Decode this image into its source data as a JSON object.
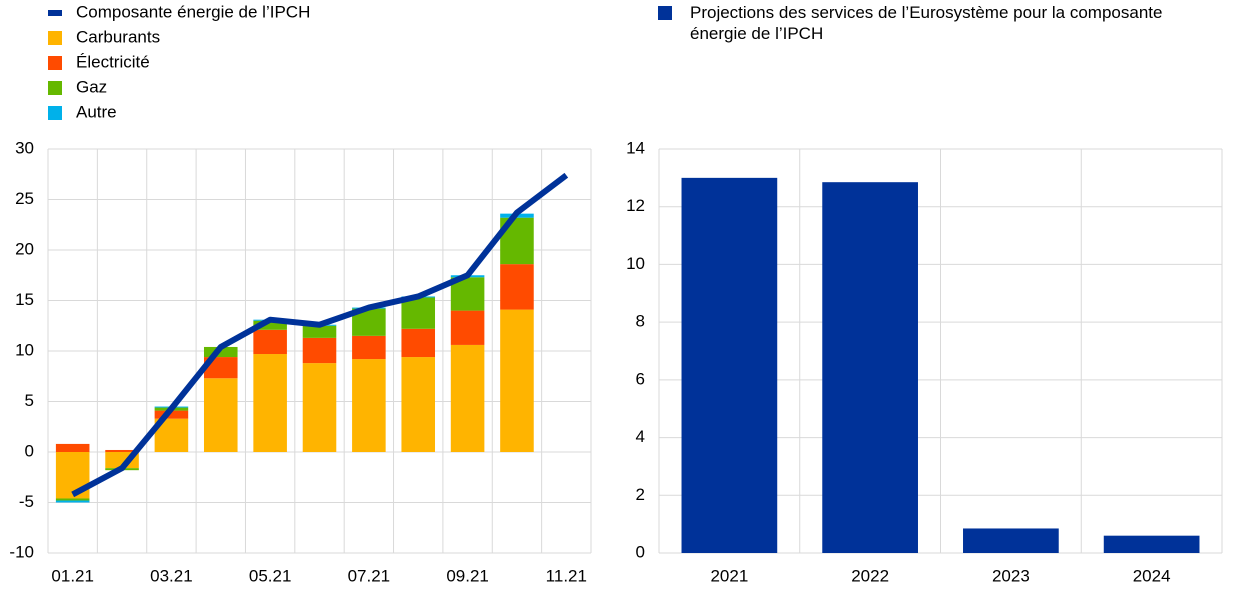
{
  "chart_data": [
    {
      "type": "bar",
      "stacked": true,
      "categories": [
        "01.21",
        null,
        "03.21",
        null,
        "05.21",
        null,
        "07.21",
        null,
        "09.21",
        null,
        "11.21"
      ],
      "series": [
        {
          "name": "Composante énergie de l’IPCH",
          "type": "line",
          "color": "#003299",
          "values": [
            -4.2,
            -1.6,
            4.3,
            10.4,
            13.1,
            12.6,
            14.3,
            15.4,
            17.5,
            23.7,
            27.4
          ]
        },
        {
          "name": "Carburants",
          "color": "#ffb400",
          "values": [
            -4.6,
            -1.6,
            3.3,
            7.3,
            9.7,
            8.8,
            9.2,
            9.4,
            10.6,
            14.1,
            null
          ]
        },
        {
          "name": "Électricité",
          "color": "#ff4b00",
          "values": [
            0.8,
            0.2,
            0.8,
            2.1,
            2.4,
            2.5,
            2.3,
            2.8,
            3.4,
            4.5,
            null
          ]
        },
        {
          "name": "Gaz",
          "color": "#65b800",
          "values": [
            -0.2,
            -0.2,
            0.3,
            1.0,
            0.9,
            1.2,
            2.7,
            3.1,
            3.3,
            4.6,
            null
          ]
        },
        {
          "name": "Autre",
          "color": "#00b1ea",
          "values": [
            -0.2,
            0,
            0.1,
            0,
            0.1,
            0.1,
            0.1,
            0.1,
            0.2,
            0.4,
            null
          ]
        }
      ],
      "ylim": [
        -10,
        30
      ],
      "yticks": [
        -10,
        -5,
        0,
        5,
        10,
        15,
        20,
        25,
        30
      ],
      "grid": true
    },
    {
      "type": "bar",
      "categories": [
        "2021",
        "2022",
        "2023",
        "2024"
      ],
      "series": [
        {
          "name": "Projections des services de l’Eurosystème pour la composante énergie de l’IPCH",
          "color": "#003299",
          "values": [
            13.0,
            12.85,
            0.85,
            0.6
          ]
        }
      ],
      "ylim": [
        0,
        14
      ],
      "yticks": [
        0,
        2,
        4,
        6,
        8,
        10,
        12,
        14
      ],
      "grid": true
    }
  ]
}
